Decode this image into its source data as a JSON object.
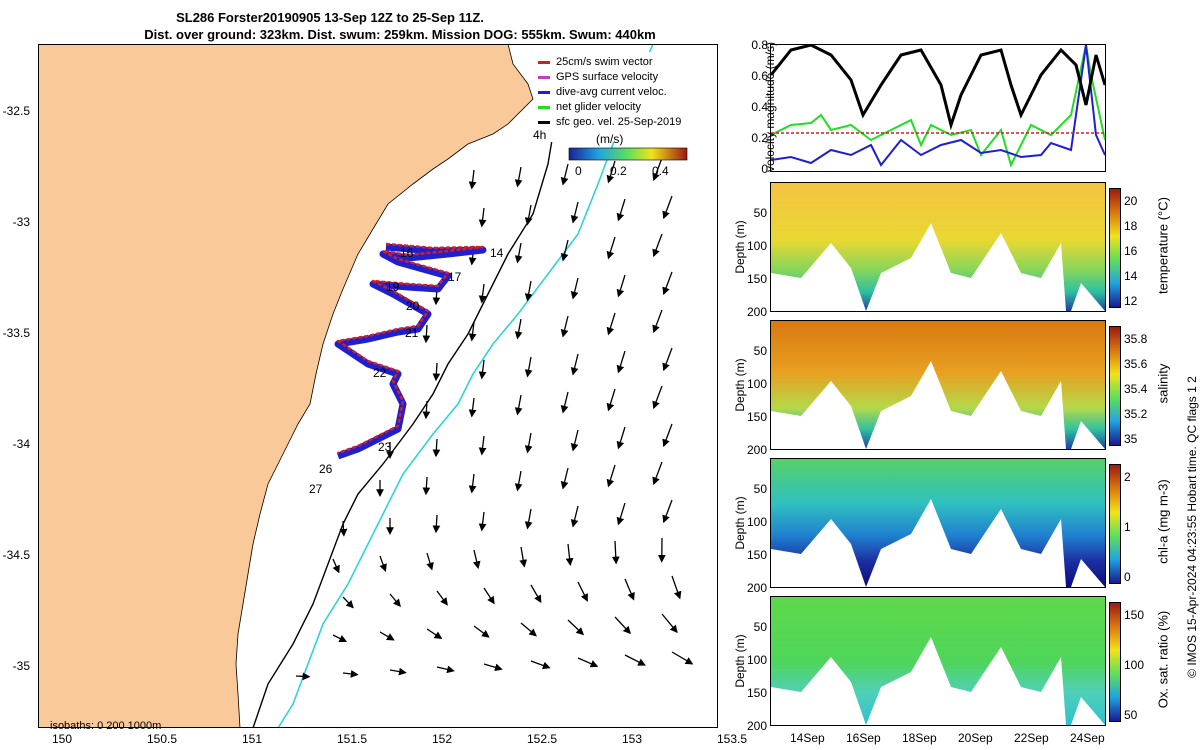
{
  "title_line1": "SL286 Forster20190905 13-Sep 12Z to 25-Sep 11Z.",
  "title_line2": "Dist. over ground: 323km. Dist. swum: 259km. Mission DOG: 555km. Swum: 440km",
  "map": {
    "lon_ticks": [
      "150",
      "150.5",
      "151",
      "151.5",
      "152",
      "152.5",
      "153",
      "153.5"
    ],
    "lat_ticks": [
      "-32.5",
      "-33",
      "-33.5",
      "-34",
      "-34.5",
      "-35"
    ],
    "isobaths_label": "isobaths: 0   200  1000m",
    "legend": [
      {
        "label": "25cm/s swim vector",
        "color": "#d02020"
      },
      {
        "label": "GPS surface velocity",
        "color": "#c040c0"
      },
      {
        "label": "dive-avg current veloc.",
        "color": "#1f1fd0"
      },
      {
        "label": "net glider velocity",
        "color": "#22dd22"
      },
      {
        "label": "sfc geo. vel. 25-Sep-2019",
        "color": "#000000"
      }
    ],
    "speed_colorbar": {
      "unit": "(m/s)",
      "ticks": [
        "0",
        "0.2",
        "0.4"
      ]
    },
    "day_labels": [
      {
        "text": "14"
      },
      {
        "text": "16"
      },
      {
        "text": "17"
      },
      {
        "text": "19"
      },
      {
        "text": "20"
      },
      {
        "text": "21"
      },
      {
        "text": "22"
      },
      {
        "text": "23"
      },
      {
        "text": "26"
      },
      {
        "text": "27"
      }
    ],
    "hour_label": "4h",
    "colors": {
      "land": "#f9c99a",
      "sea": "#ffffff",
      "isobath200": "#000000",
      "isobath1000": "#2ed3d8"
    }
  },
  "velocity_panel": {
    "ylabel": "velocity magnitude (m/s)",
    "yticks": [
      "0.8",
      "0.6",
      "0.4",
      "0.2",
      "0"
    ],
    "ylim": [
      0,
      0.8
    ]
  },
  "section_panels": [
    {
      "id": "temperature",
      "ylabel": "Depth (m)",
      "cbar_label": "temperature (°C)",
      "cbar_ticks": [
        "20",
        "18",
        "16",
        "14",
        "12"
      ],
      "yticks": [
        "50",
        "100",
        "150",
        "200"
      ]
    },
    {
      "id": "salinity",
      "ylabel": "Depth (m)",
      "cbar_label": "salinity",
      "cbar_ticks": [
        "35.8",
        "35.6",
        "35.4",
        "35.2",
        "35"
      ],
      "yticks": [
        "50",
        "100",
        "150",
        "200"
      ]
    },
    {
      "id": "chla",
      "ylabel": "Depth (m)",
      "cbar_label": "chl-a (mg m-3)",
      "cbar_ticks": [
        "2",
        "1",
        "0"
      ],
      "yticks": [
        "50",
        "100",
        "150",
        "200"
      ]
    },
    {
      "id": "oxygen",
      "ylabel": "Depth (m)",
      "cbar_label": "Ox. sat. ratio (%)",
      "cbar_ticks": [
        "150",
        "100",
        "50"
      ],
      "yticks": [
        "50",
        "100",
        "150",
        "200"
      ]
    }
  ],
  "time_ticks": [
    "14Sep",
    "16Sep",
    "18Sep",
    "20Sep",
    "22Sep",
    "24Sep"
  ],
  "footer_credit": "© IMOS 15-Apr-2024 04:23:55 Hobart time. QC flags 1  2"
}
